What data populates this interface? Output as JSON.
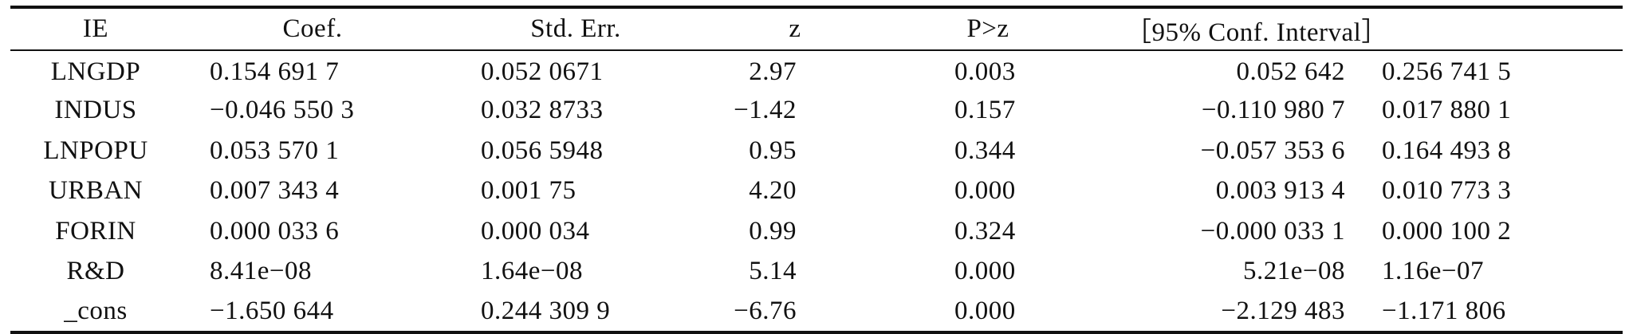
{
  "table": {
    "headers": [
      "IE",
      "Coef.",
      "Std. Err.",
      "z",
      "P>z",
      "［95% Conf. Interval］"
    ],
    "rows": [
      {
        "ie": "LNGDP",
        "coef": "0.154 691 7",
        "se": "0.052 0671",
        "z": "2.97",
        "p": "0.003",
        "ci_low": "0.052 642",
        "ci_high": "0.256 741 5"
      },
      {
        "ie": "INDUS",
        "coef": "−0.046 550 3",
        "se": "0.032 8733",
        "z": "−1.42",
        "p": "0.157",
        "ci_low": "−0.110 980 7",
        "ci_high": "0.017 880 1"
      },
      {
        "ie": "LNPOPU",
        "coef": "0.053 570 1",
        "se": "0.056 5948",
        "z": "0.95",
        "p": "0.344",
        "ci_low": "−0.057 353 6",
        "ci_high": "0.164 493 8"
      },
      {
        "ie": "URBAN",
        "coef": "0.007 343 4",
        "se": "0.001 75",
        "z": "4.20",
        "p": "0.000",
        "ci_low": "0.003 913 4",
        "ci_high": "0.010 773 3"
      },
      {
        "ie": "FORIN",
        "coef": "0.000 033 6",
        "se": "0.000 034",
        "z": "0.99",
        "p": "0.324",
        "ci_low": "−0.000 033 1",
        "ci_high": "0.000 100 2"
      },
      {
        "ie": "R&D",
        "coef": "8.41e−08",
        "se": "1.64e−08",
        "z": "5.14",
        "p": "0.000",
        "ci_low": "5.21e−08",
        "ci_high": "1.16e−07"
      },
      {
        "ie": "_cons",
        "coef": "−1.650 644",
        "se": "0.244 309 9",
        "z": "−6.76",
        "p": "0.000",
        "ci_low": "−2.129 483",
        "ci_high": "−1.171 806"
      }
    ]
  }
}
